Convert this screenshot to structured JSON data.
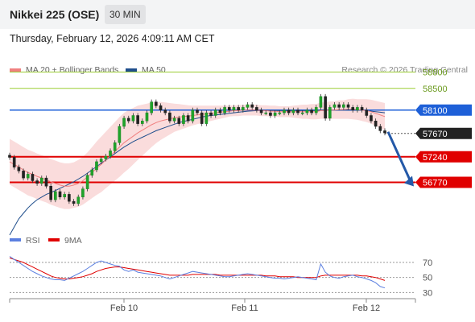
{
  "header": {
    "instrument": "Nikkei 225 (OSE)",
    "timeframe": "30 MIN"
  },
  "datetime": "Thursday, February 12, 2026 4:09:11 AM CET",
  "copyright": "Research © 2026 Trading Central",
  "chart_data": [
    {
      "type": "line",
      "legend": [
        {
          "name": "MA 20 + Bollinger Bands",
          "color": "#f08080"
        },
        {
          "name": "MA 50",
          "color": "#1f4e8c"
        }
      ],
      "x_ticks": [
        "Feb 10",
        "Feb 11",
        "Feb 12"
      ],
      "ylim": [
        55800,
        59000
      ],
      "levels": [
        {
          "value": 58800,
          "label": "58800",
          "color": "#9acd32",
          "style": "outline"
        },
        {
          "value": 58500,
          "label": "58500",
          "color": "#9acd32",
          "style": "outline"
        },
        {
          "value": 58100,
          "label": "58100",
          "color": "#1e60d8",
          "style": "filled"
        },
        {
          "value": 57670,
          "label": "57670",
          "color": "#222222",
          "style": "filled"
        },
        {
          "value": 57240,
          "label": "57240",
          "color": "#e00000",
          "style": "filled"
        },
        {
          "value": 56770,
          "label": "56770",
          "color": "#e00000",
          "style": "filled"
        }
      ],
      "forecast_arrow": {
        "from": 57670,
        "to": 56770,
        "color": "#2459a8"
      },
      "price": [
        57230,
        57050,
        56980,
        56850,
        56920,
        56800,
        56750,
        56850,
        56700,
        56450,
        56600,
        56500,
        56550,
        56420,
        56380,
        56500,
        56650,
        56900,
        57000,
        57150,
        57200,
        57250,
        57350,
        57500,
        57800,
        57950,
        57900,
        58000,
        57850,
        57900,
        58050,
        58250,
        58180,
        58100,
        58050,
        57900,
        57950,
        57850,
        58000,
        57900,
        58100,
        58050,
        57850,
        58050,
        58000,
        58100,
        58050,
        58150,
        58100,
        58150,
        58100,
        58150,
        58200,
        58150,
        58100,
        58050,
        58050,
        58000,
        58050,
        58050,
        58100,
        58050,
        58100,
        58050,
        58050,
        58100,
        58050,
        58150,
        58350,
        57950,
        58150,
        58200,
        58150,
        58200,
        58150,
        58100,
        58150,
        58100,
        58000,
        57900,
        57800,
        57720,
        57680
      ],
      "ma50": [
        55800,
        55950,
        56100,
        56200,
        56300,
        56380,
        56450,
        56500,
        56550,
        56580,
        56620,
        56660,
        56700,
        56740,
        56780,
        56830,
        56880,
        56940,
        57000,
        57060,
        57120,
        57180,
        57240,
        57300,
        57360,
        57420,
        57470,
        57520,
        57560,
        57600,
        57640,
        57680,
        57720,
        57750,
        57780,
        57810,
        57840,
        57870,
        57890,
        57910,
        57930,
        57950,
        57970,
        57990,
        58000,
        58010,
        58020,
        58030,
        58040,
        58050,
        58060,
        58070,
        58080,
        58085,
        58090,
        58090,
        58090,
        58090,
        58090,
        58090,
        58090,
        58090,
        58090,
        58090,
        58090,
        58090,
        58090,
        58090,
        58100,
        58100,
        58100,
        58100,
        58100,
        58100,
        58100,
        58100,
        58100,
        58100,
        58090,
        58080,
        58070,
        58060,
        58050
      ],
      "ma20": [
        57150,
        57100,
        57050,
        57000,
        56950,
        56920,
        56880,
        56850,
        56820,
        56780,
        56750,
        56720,
        56700,
        56700,
        56720,
        56750,
        56800,
        56870,
        56950,
        57030,
        57100,
        57180,
        57260,
        57340,
        57420,
        57500,
        57560,
        57620,
        57680,
        57730,
        57780,
        57830,
        57870,
        57900,
        57920,
        57940,
        57960,
        57970,
        57980,
        57990,
        58000,
        58010,
        58020,
        58030,
        58040,
        58050,
        58060,
        58070,
        58080,
        58090,
        58090,
        58100,
        58100,
        58100,
        58100,
        58090,
        58090,
        58080,
        58080,
        58070,
        58070,
        58070,
        58070,
        58070,
        58070,
        58070,
        58070,
        58070,
        58090,
        58090,
        58100,
        58100,
        58110,
        58110,
        58120,
        58120,
        58110,
        58100,
        58090,
        58070,
        58040,
        58010,
        57980
      ],
      "bb_width": [
        420,
        420,
        420,
        420,
        420,
        420,
        420,
        420,
        420,
        420,
        420,
        420,
        420,
        420,
        420,
        430,
        440,
        450,
        470,
        490,
        510,
        520,
        530,
        540,
        550,
        550,
        540,
        520,
        500,
        470,
        440,
        410,
        380,
        350,
        320,
        290,
        260,
        240,
        220,
        200,
        180,
        170,
        160,
        150,
        140,
        130,
        120,
        110,
        100,
        100,
        100,
        100,
        100,
        100,
        100,
        100,
        100,
        100,
        100,
        100,
        100,
        100,
        110,
        120,
        130,
        130,
        140,
        140,
        150,
        150,
        160,
        160,
        170,
        170,
        180,
        190,
        190,
        200,
        210,
        220,
        230,
        240,
        250
      ]
    },
    {
      "type": "line",
      "legend": [
        {
          "name": "RSI",
          "color": "#5b7fe0"
        },
        {
          "name": "9MA",
          "color": "#e00000"
        }
      ],
      "ylim": [
        25,
        85
      ],
      "levels": [
        70,
        50,
        30
      ],
      "rsi": [
        78,
        74,
        70,
        66,
        62,
        58,
        55,
        52,
        50,
        48,
        47,
        47,
        46,
        49,
        52,
        55,
        58,
        62,
        66,
        70,
        72,
        70,
        68,
        66,
        65,
        60,
        58,
        60,
        57,
        56,
        55,
        54,
        53,
        52,
        50,
        48,
        50,
        52,
        54,
        56,
        58,
        57,
        56,
        55,
        54,
        53,
        52,
        51,
        51,
        52,
        53,
        54,
        55,
        54,
        53,
        52,
        51,
        50,
        49,
        49,
        48,
        49,
        50,
        51,
        50,
        49,
        48,
        47,
        68,
        57,
        52,
        50,
        49,
        51,
        52,
        53,
        51,
        50,
        48,
        46,
        43,
        38,
        36
      ],
      "ma9": [
        76,
        74,
        72,
        70,
        67,
        64,
        61,
        58,
        55,
        52,
        50,
        49,
        48,
        48,
        49,
        50,
        51,
        53,
        55,
        58,
        60,
        62,
        63,
        64,
        64,
        63,
        62,
        61,
        60,
        59,
        58,
        57,
        56,
        55,
        54,
        53,
        53,
        53,
        53,
        53,
        54,
        54,
        54,
        54,
        54,
        54,
        53,
        53,
        53,
        53,
        53,
        53,
        53,
        53,
        53,
        53,
        52,
        52,
        52,
        51,
        51,
        51,
        51,
        50,
        50,
        50,
        50,
        50,
        52,
        53,
        53,
        53,
        53,
        53,
        53,
        53,
        53,
        52,
        52,
        51,
        50,
        48,
        46
      ]
    }
  ]
}
